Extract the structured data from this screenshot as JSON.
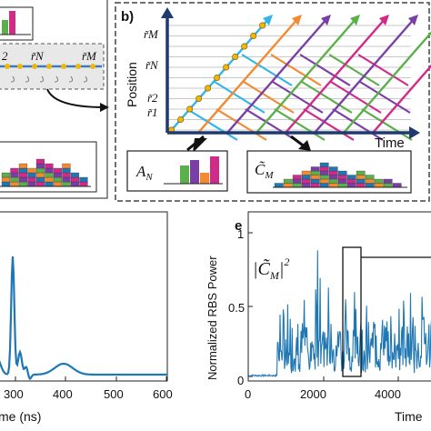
{
  "panel_b": {
    "label": "b)",
    "y_axis_label": "Position",
    "x_axis_label": "Time",
    "y_ticks": [
      "r̃M",
      "r̃N",
      "r̃2",
      "r̃1"
    ],
    "box_left_label": "A",
    "box_left_sub": "N",
    "box_right_label": "C̃",
    "box_right_sub": "M"
  },
  "panel_a": {
    "pos_labels": [
      "2",
      "r̃N",
      "r̃M"
    ]
  },
  "panel_d": {
    "x_ticks": [
      "300",
      "400",
      "500",
      "600"
    ],
    "x_label": "me (ns)"
  },
  "panel_e": {
    "label": "e",
    "y_label": "Normalized RBS Power",
    "y_ticks": [
      "1",
      "0.5",
      "0"
    ],
    "x_ticks": [
      "0",
      "2000",
      "4000"
    ],
    "x_label": "Time",
    "annotation": "|C̃M|²"
  },
  "colors": {
    "blue": "#1f77b4",
    "orange": "#f28a30",
    "purple": "#7a3fa6",
    "green": "#5bb04b",
    "magenta": "#d12b8a",
    "cyan": "#33b5e5",
    "node": "#f2b705",
    "arrow_navy": "#1f3b6e"
  }
}
